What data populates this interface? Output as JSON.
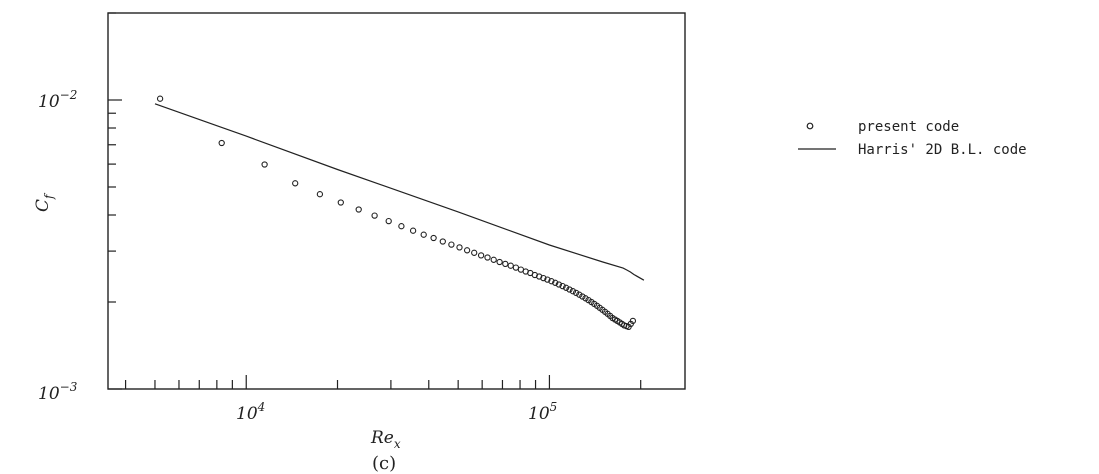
{
  "figure": {
    "caption": "(c)"
  },
  "legend": {
    "placement": "right",
    "items": [
      {
        "label": "present code",
        "marker": "circle"
      },
      {
        "label": "Harris' 2D B.L. code",
        "marker": "line"
      }
    ]
  },
  "chart_data": {
    "type": "scatter",
    "xscale": "log",
    "yscale": "log",
    "xlim": [
      3500,
      280000
    ],
    "ylim": [
      0.001,
      0.02
    ],
    "xlabel": "Re",
    "xlabel_sub": "x",
    "ylabel": "C",
    "ylabel_sub": "f",
    "x_major_ticks": [
      {
        "value": 10000,
        "base": "10",
        "exp": "4"
      },
      {
        "value": 100000,
        "base": "10",
        "exp": "5"
      }
    ],
    "y_major_ticks": [
      {
        "value": 0.01,
        "base": "10",
        "exp": "−2"
      },
      {
        "value": 0.001,
        "base": "10",
        "exp": "−3"
      }
    ],
    "grid": false,
    "series": [
      {
        "name": "present code",
        "kind": "points",
        "x": [
          5200,
          8300,
          11500,
          14500,
          17500,
          20500,
          23500,
          26500,
          29500,
          32500,
          35500,
          38500,
          41500,
          44500,
          47500,
          50500,
          53500,
          56500,
          59500,
          62500,
          65500,
          68500,
          71500,
          74500,
          77500,
          80500,
          83500,
          86500,
          89500,
          92500,
          95500,
          98500,
          101500,
          104500,
          107500,
          110500,
          113500,
          116500,
          119500,
          122500,
          125500,
          128500,
          131500,
          134500,
          137500,
          140500,
          143500,
          146500,
          149500,
          152500,
          155500,
          158500,
          161500,
          164500,
          167500,
          170500,
          173500,
          176500,
          179500,
          182500,
          185500,
          188500
        ],
        "y": [
          0.0101,
          0.0071,
          0.00598,
          0.00515,
          0.00472,
          0.00442,
          0.00418,
          0.00398,
          0.00381,
          0.00366,
          0.00353,
          0.00342,
          0.00333,
          0.00324,
          0.00316,
          0.00309,
          0.00302,
          0.00296,
          0.0029,
          0.00285,
          0.0028,
          0.00275,
          0.00271,
          0.00267,
          0.00263,
          0.00259,
          0.00255,
          0.00252,
          0.00248,
          0.00245,
          0.00242,
          0.00239,
          0.00236,
          0.00233,
          0.0023,
          0.00227,
          0.00224,
          0.00221,
          0.00218,
          0.00215,
          0.00212,
          0.00209,
          0.00206,
          0.00203,
          0.002,
          0.00197,
          0.00194,
          0.00191,
          0.00188,
          0.00185,
          0.00182,
          0.00179,
          0.00176,
          0.00174,
          0.00172,
          0.0017,
          0.00168,
          0.00166,
          0.00165,
          0.00164,
          0.00168,
          0.00172
        ]
      },
      {
        "name": "Harris' 2D B.L. code",
        "kind": "line",
        "x": [
          5000,
          10000,
          20000,
          50000,
          100000,
          150000,
          175000,
          180000,
          185000,
          190000,
          205000
        ],
        "y": [
          0.0097,
          0.0075,
          0.00575,
          0.0041,
          0.00315,
          0.00275,
          0.00262,
          0.00258,
          0.00254,
          0.00249,
          0.00238
        ]
      }
    ]
  }
}
